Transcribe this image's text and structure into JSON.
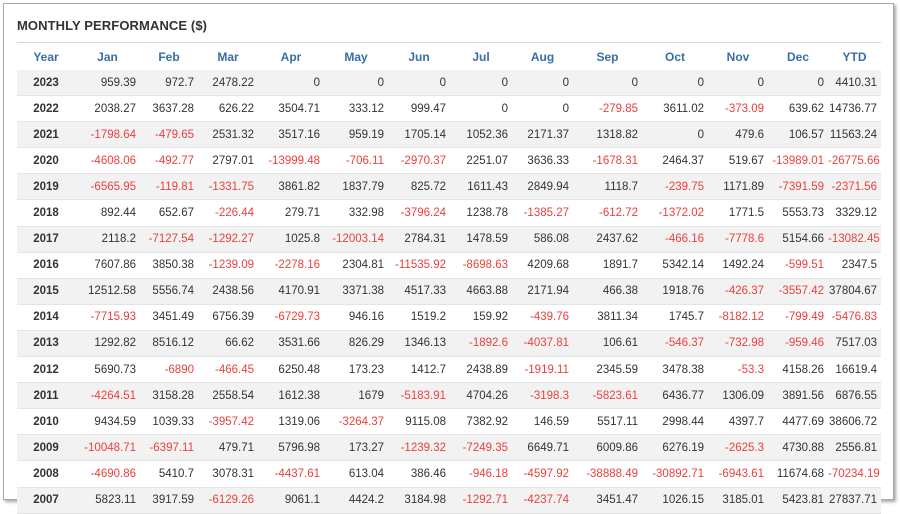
{
  "title": "MONTHLY PERFORMANCE ($)",
  "colors": {
    "header_text": "#3a6ea5",
    "negative": "#e8413d",
    "positive": "#333333",
    "row_stripe": "#f2f2f2"
  },
  "columns": [
    "Year",
    "Jan",
    "Feb",
    "Mar",
    "Apr",
    "May",
    "Jun",
    "Jul",
    "Aug",
    "Sep",
    "Oct",
    "Nov",
    "Dec",
    "YTD"
  ],
  "rows": [
    [
      "2023",
      "959.39",
      "972.7",
      "2478.22",
      "0",
      "0",
      "0",
      "0",
      "0",
      "0",
      "0",
      "0",
      "0",
      "4410.31"
    ],
    [
      "2022",
      "2038.27",
      "3637.28",
      "626.22",
      "3504.71",
      "333.12",
      "999.47",
      "0",
      "0",
      "-279.85",
      "3611.02",
      "-373.09",
      "639.62",
      "14736.77"
    ],
    [
      "2021",
      "-1798.64",
      "-479.65",
      "2531.32",
      "3517.16",
      "959.19",
      "1705.14",
      "1052.36",
      "2171.37",
      "1318.82",
      "0",
      "479.6",
      "106.57",
      "11563.24"
    ],
    [
      "2020",
      "-4608.06",
      "-492.77",
      "2797.01",
      "-13999.48",
      "-706.11",
      "-2970.37",
      "2251.07",
      "3636.33",
      "-1678.31",
      "2464.37",
      "519.67",
      "-13989.01",
      "-26775.66"
    ],
    [
      "2019",
      "-6565.95",
      "-119.81",
      "-1331.75",
      "3861.82",
      "1837.79",
      "825.72",
      "1611.43",
      "2849.94",
      "1118.7",
      "-239.75",
      "1171.89",
      "-7391.59",
      "-2371.56"
    ],
    [
      "2018",
      "892.44",
      "652.67",
      "-226.44",
      "279.71",
      "332.98",
      "-3796.24",
      "1238.78",
      "-1385.27",
      "-612.72",
      "-1372.02",
      "1771.5",
      "5553.73",
      "3329.12"
    ],
    [
      "2017",
      "2118.2",
      "-7127.54",
      "-1292.27",
      "1025.8",
      "-12003.14",
      "2784.31",
      "1478.59",
      "586.08",
      "2437.62",
      "-466.16",
      "-7778.6",
      "5154.66",
      "-13082.45"
    ],
    [
      "2016",
      "7607.86",
      "3850.38",
      "-1239.09",
      "-2278.16",
      "2304.81",
      "-11535.92",
      "-8698.63",
      "4209.68",
      "1891.7",
      "5342.14",
      "1492.24",
      "-599.51",
      "2347.5"
    ],
    [
      "2015",
      "12512.58",
      "5556.74",
      "2438.56",
      "4170.91",
      "3371.38",
      "4517.33",
      "4663.88",
      "2171.94",
      "466.38",
      "1918.76",
      "-426.37",
      "-3557.42",
      "37804.67"
    ],
    [
      "2014",
      "-7715.93",
      "3451.49",
      "6756.39",
      "-6729.73",
      "946.16",
      "1519.2",
      "159.92",
      "-439.76",
      "3811.34",
      "1745.7",
      "-8182.12",
      "-799.49",
      "-5476.83"
    ],
    [
      "2013",
      "1292.82",
      "8516.12",
      "66.62",
      "3531.66",
      "826.29",
      "1346.13",
      "-1892.6",
      "-4037.81",
      "106.61",
      "-546.37",
      "-732.98",
      "-959.46",
      "7517.03"
    ],
    [
      "2012",
      "5690.73",
      "-6890",
      "-466.45",
      "6250.48",
      "173.23",
      "1412.7",
      "2438.89",
      "-1919.11",
      "2345.59",
      "3478.38",
      "-53.3",
      "4158.26",
      "16619.4"
    ],
    [
      "2011",
      "-4264.51",
      "3158.28",
      "2558.54",
      "1612.38",
      "1679",
      "-5183.91",
      "4704.26",
      "-3198.3",
      "-5823.61",
      "6436.77",
      "1306.09",
      "3891.56",
      "6876.55"
    ],
    [
      "2010",
      "9434.59",
      "1039.33",
      "-3957.42",
      "1319.06",
      "-3264.37",
      "9115.08",
      "7382.92",
      "146.59",
      "5517.11",
      "2998.44",
      "4397.7",
      "4477.69",
      "38606.72"
    ],
    [
      "2009",
      "-10048.71",
      "-6397.11",
      "479.71",
      "5796.98",
      "173.27",
      "-1239.32",
      "-7249.35",
      "6649.71",
      "6009.86",
      "6276.19",
      "-2625.3",
      "4730.88",
      "2556.81"
    ],
    [
      "2008",
      "-4690.86",
      "5410.7",
      "3078.31",
      "-4437.61",
      "613.04",
      "386.46",
      "-946.18",
      "-4597.92",
      "-38888.49",
      "-30892.71",
      "-6943.61",
      "11674.68",
      "-70234.19"
    ],
    [
      "2007",
      "5823.11",
      "3917.59",
      "-6129.26",
      "9061.1",
      "4424.2",
      "3184.98",
      "-1292.71",
      "-4237.74",
      "3451.47",
      "1026.15",
      "3185.01",
      "5423.81",
      "27837.71"
    ]
  ]
}
